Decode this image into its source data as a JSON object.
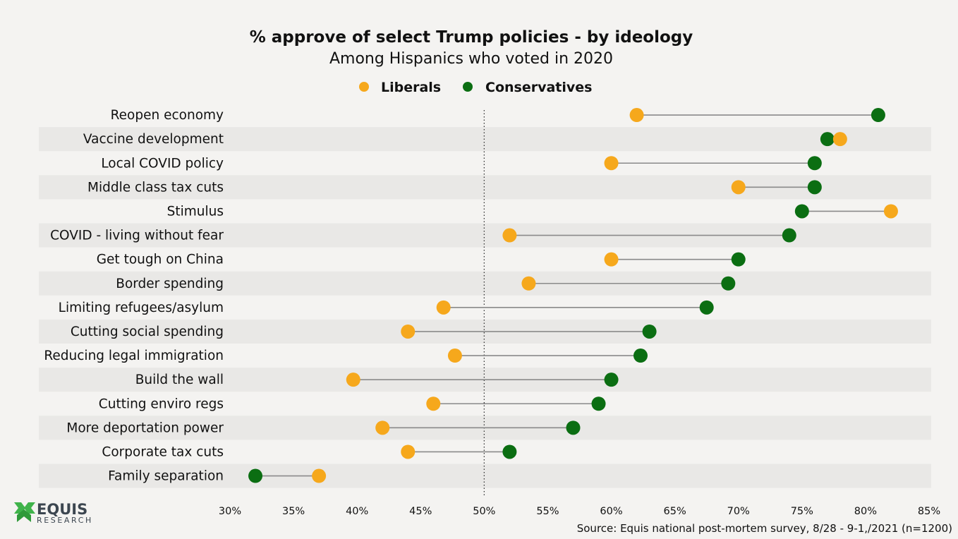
{
  "colors": {
    "background": "#f4f3f1",
    "stripe": "#e9e8e6",
    "liberals": "#f6a81c",
    "conservatives": "#0b6e12",
    "connector": "#8a8a8a",
    "logo_green": "#3fb34a",
    "logo_text": "#3c4650"
  },
  "logo": {
    "icon": "equis-x-icon",
    "name": "EQUIS",
    "sub": "RESEARCH"
  },
  "chart_data": {
    "type": "dumbbell",
    "title": "% approve of select Trump policies - by ideology",
    "subtitle": "Among Hispanics who voted in 2020",
    "legend": [
      {
        "name": "Liberals",
        "key": "liberals"
      },
      {
        "name": "Conservatives",
        "key": "conservatives"
      }
    ],
    "legend_position": "top-center",
    "xlim": [
      30,
      85
    ],
    "xticks": [
      "30%",
      "35%",
      "40%",
      "45%",
      "50%",
      "55%",
      "60%",
      "65%",
      "70%",
      "75%",
      "80%",
      "85%"
    ],
    "xtick_values": [
      30,
      35,
      40,
      45,
      50,
      55,
      60,
      65,
      70,
      75,
      80,
      85
    ],
    "reference_line": 50,
    "categories": [
      "Reopen economy",
      "Vaccine development",
      "Local COVID policy",
      "Middle class tax cuts",
      "Stimulus",
      "COVID - living without fear",
      "Get tough on China",
      "Border spending",
      "Limiting refugees/asylum",
      "Cutting social spending",
      "Reducing legal immigration",
      "Build the wall",
      "Cutting enviro regs",
      "More deportation power",
      "Corporate tax cuts",
      "Family separation"
    ],
    "series": [
      {
        "name": "Liberals",
        "key": "liberals",
        "values": [
          62,
          78,
          60,
          70,
          82,
          52,
          60,
          53.5,
          46.8,
          44,
          47.7,
          39.7,
          46,
          42,
          44,
          37
        ]
      },
      {
        "name": "Conservatives",
        "key": "conservatives",
        "values": [
          81,
          77,
          76,
          76,
          75,
          74,
          70,
          69.2,
          67.5,
          63,
          62.3,
          60,
          59,
          57,
          52,
          32
        ]
      }
    ],
    "source": "Source: Equis national post-mortem survey, 8/28 - 9-1,/2021 (n=1200)"
  }
}
